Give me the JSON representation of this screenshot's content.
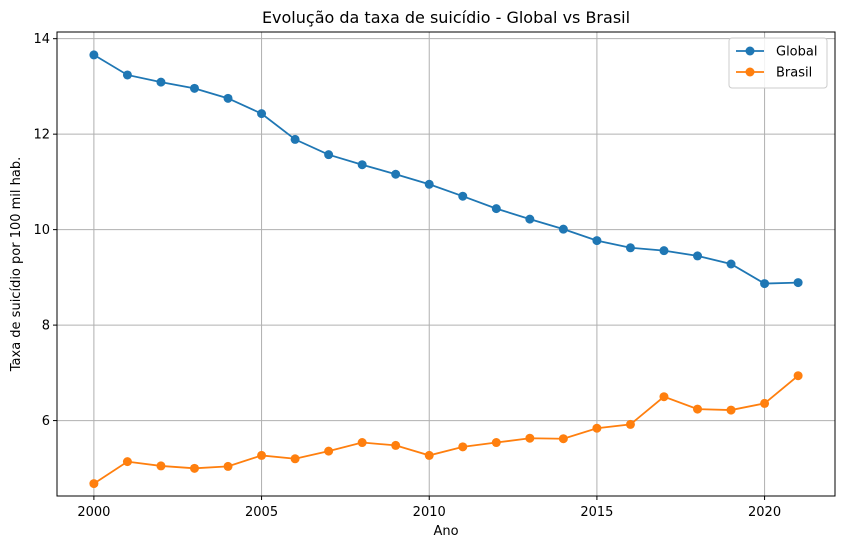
{
  "chart_data": {
    "type": "line",
    "title": "Evolução da taxa de suicídio - Global vs Brasil",
    "xlabel": "Ano",
    "ylabel": "Taxa de suicídio por 100 mil hab.",
    "xlim": [
      1998.9,
      2022.1
    ],
    "ylim": [
      4.42,
      14.14
    ],
    "xticks": [
      2000,
      2005,
      2010,
      2015,
      2020
    ],
    "yticks": [
      6,
      8,
      10,
      12,
      14
    ],
    "grid": true,
    "legend_position": "top-right",
    "x": [
      2000,
      2001,
      2002,
      2003,
      2004,
      2005,
      2006,
      2007,
      2008,
      2009,
      2010,
      2011,
      2012,
      2013,
      2014,
      2015,
      2016,
      2017,
      2018,
      2019,
      2020,
      2021
    ],
    "series": [
      {
        "name": "Global",
        "color": "#1f77b4",
        "values": [
          13.66,
          13.24,
          13.09,
          12.96,
          12.75,
          12.43,
          11.89,
          11.57,
          11.36,
          11.16,
          10.95,
          10.7,
          10.44,
          10.22,
          10.01,
          9.77,
          9.62,
          9.56,
          9.45,
          9.28,
          8.87,
          8.89
        ]
      },
      {
        "name": "Brasil",
        "color": "#ff7f0e",
        "values": [
          4.68,
          5.14,
          5.05,
          5.0,
          5.04,
          5.27,
          5.2,
          5.36,
          5.54,
          5.48,
          5.27,
          5.45,
          5.54,
          5.63,
          5.62,
          5.84,
          5.92,
          6.5,
          6.24,
          6.22,
          6.36,
          6.94
        ]
      }
    ]
  }
}
